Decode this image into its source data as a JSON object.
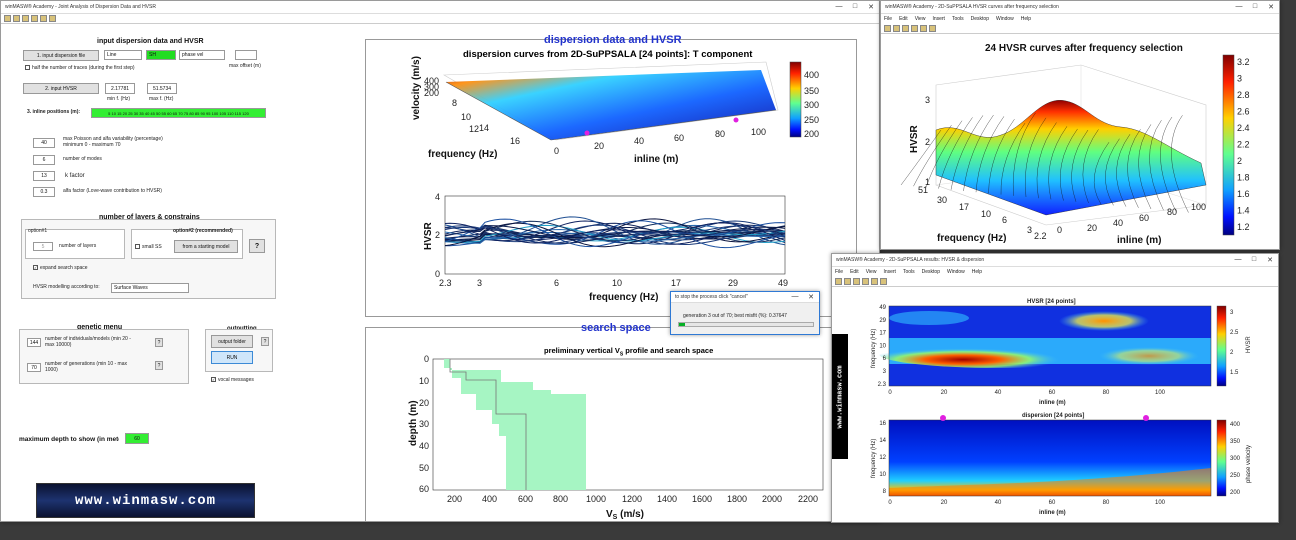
{
  "main_window": {
    "title": "winMASW® Academy - Joint Analysis of Dispersion Data and HVSR",
    "input_heading": "input dispersion data and HVSR",
    "input_dispersion_btn": "1. input dispersion file",
    "line_select": "Line",
    "group_select": "SH",
    "phase_select": "phase vel",
    "max_offset_label": "max offset (m)",
    "half_traces_label": "half the number of traces (during the first step)",
    "input_hvsr_btn": "2. input HVSR",
    "min_f": "2.17781",
    "max_f": "51.5734",
    "min_f_label": "min f. (Hz)",
    "max_f_label": "max f. (Hz)",
    "inline_label": "3. inline positions (m):",
    "inline_values": "5 10 15 20 25 30 35 40 45 50 55 60 65 70 75 80 85 90 95 100 105 110 115 120",
    "params": [
      {
        "value": "40",
        "label": "max Poisson and alfa variability (percentage) minimum 0 - maximum 70"
      },
      {
        "value": "6",
        "label": "number of modes"
      },
      {
        "value": "13",
        "label": "k factor"
      },
      {
        "value": "0.3",
        "label": "alfa factor (Love-wave contribution to HVSR)"
      }
    ],
    "layers_heading": "number of layers & constrains",
    "option1": "option#1",
    "option2": "option#2 (recommended)",
    "layers_value": "5",
    "layers_label": "number of layers",
    "small_ss": "small SS",
    "starting_model_btn": "from a starting model",
    "help_btn": "?",
    "expand_label": "expand search space",
    "hvsr_modelling_label": "HVSR modelling according to:",
    "hvsr_modelling_value": "Surface Waves",
    "genetic_heading": "genetic menu",
    "individuals_value": "144",
    "individuals_label": "number of individuals/models (min 20 - max 10000)",
    "generations_value": "70",
    "generations_label": "number of generations (min 10 - max 1000)",
    "outputting_heading": "outputting",
    "output_folder_btn": "output folder",
    "run_btn": "RUN",
    "vocal_label": "vocal messages",
    "max_depth_label": "maximum depth to show (in meters):",
    "max_depth_value": "60",
    "logo_text": "www.winmasw.com"
  },
  "dispersion_figure": {
    "heading": "dispersion data and HVSR",
    "title": "dispersion curves from 2D-SuPPSALA [24 points]: T component",
    "vel_label": "velocity (m/s)",
    "freq_label": "frequency (Hz)",
    "inline_label": "inline (m)",
    "vel_ticks": [
      "400",
      "300",
      "200"
    ],
    "freq_ticks": [
      "8",
      "10",
      "12",
      "14",
      "16"
    ],
    "inline_ticks": [
      "0",
      "20",
      "40",
      "60",
      "80",
      "100"
    ],
    "colorbar_ticks": [
      "400",
      "350",
      "300",
      "250",
      "200"
    ]
  },
  "hvsr_plot": {
    "ylabel": "HVSR",
    "xlabel": "frequency (Hz)",
    "y_ticks": [
      "4",
      "2",
      "0"
    ],
    "x_ticks": [
      "2.3",
      "3",
      "6",
      "10",
      "17",
      "29",
      "49"
    ]
  },
  "search_space": {
    "heading": "search space",
    "title": "preliminary vertical V",
    "title_sub": "S",
    "title_end": " profile and search space",
    "ylabel": "depth (m)",
    "xlabel": "V",
    "xlabel_sub": "S",
    "xlabel_end": " (m/s)",
    "y_ticks": [
      "0",
      "10",
      "20",
      "30",
      "40",
      "50",
      "60"
    ],
    "x_ticks": [
      "200",
      "400",
      "600",
      "800",
      "1000",
      "1200",
      "1400",
      "1600",
      "1800",
      "2000",
      "2200"
    ]
  },
  "progress": {
    "title": "to stop the process click \"cancel\"",
    "text": "generation    3 out of    70; best misfit (%): 0.37647",
    "fraction": 0.043
  },
  "hvsr3d_window": {
    "title": "winMASW® Academy - 2D-SuPPSALA HVSR curves after frequency selection",
    "menu": [
      "File",
      "Edit",
      "View",
      "Insert",
      "Tools",
      "Desktop",
      "Window",
      "Help"
    ],
    "fig_title": "24 HVSR curves after frequency selection",
    "zlabel": "HVSR",
    "xlabel": "frequency (Hz)",
    "ylabel": "inline (m)",
    "z_ticks": [
      "3",
      "2",
      "1"
    ],
    "freq_ticks": [
      "51",
      "30",
      "17",
      "10",
      "6",
      "3",
      "2.2"
    ],
    "inline_ticks": [
      "0",
      "20",
      "40",
      "60",
      "80",
      "100"
    ],
    "colorbar_ticks": [
      "3.2",
      "3",
      "2.8",
      "2.6",
      "2.4",
      "2.2",
      "2",
      "1.8",
      "1.6",
      "1.4",
      "1.2"
    ]
  },
  "hvsr2d_window": {
    "title": "winMASW® Academy - 2D-SuPPSALA results: HVSR & dispersion",
    "menu": [
      "File",
      "Edit",
      "View",
      "Insert",
      "Tools",
      "Desktop",
      "Window",
      "Help"
    ],
    "top_title": "HVSR [24 points]",
    "top_ylabel": "frequency (Hz)",
    "top_xlabel": "inline (m)",
    "top_y_ticks": [
      "49",
      "29",
      "17",
      "10",
      "6",
      "3",
      "2.3"
    ],
    "top_x_ticks": [
      "0",
      "20",
      "40",
      "60",
      "80",
      "100"
    ],
    "top_cb_ticks": [
      "3",
      "2.5",
      "2",
      "1.5"
    ],
    "top_cb_label": "HVSR",
    "bot_title": "dispersion [24 points]",
    "bot_ylabel": "frequency (Hz)",
    "bot_xlabel": "inline (m)",
    "bot_y_ticks": [
      "16",
      "14",
      "12",
      "10",
      "8"
    ],
    "bot_x_ticks": [
      "0",
      "20",
      "40",
      "60",
      "80",
      "100"
    ],
    "bot_cb_ticks": [
      "400",
      "350",
      "300",
      "250",
      "200"
    ],
    "bot_cb_label": "phase velocity",
    "side_logo": "www.winmasw.com"
  }
}
